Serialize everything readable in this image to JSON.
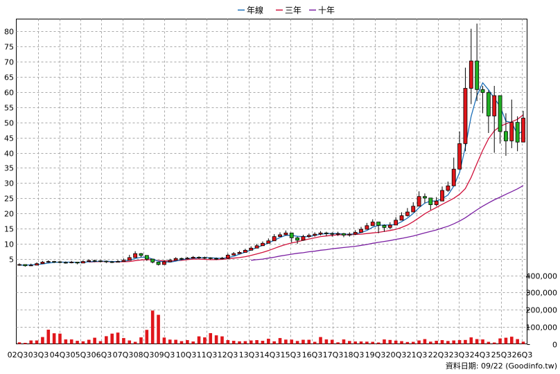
{
  "chart_data": {
    "type": "candlestick",
    "legend": {
      "placement": "top-center",
      "items": [
        {
          "name": "年線",
          "color": "#1c6fb8"
        },
        {
          "name": "三年",
          "color": "#d0103a"
        },
        {
          "name": "十年",
          "color": "#7a1fa2"
        }
      ]
    },
    "price_axis": {
      "ylim": [
        0,
        84
      ],
      "ticks": [
        5,
        10,
        15,
        20,
        25,
        30,
        35,
        40,
        45,
        50,
        55,
        60,
        65,
        70,
        75,
        80
      ]
    },
    "volume_axis": {
      "ylim": [
        0,
        480000
      ],
      "ticks": [
        0,
        100000,
        200000,
        300000,
        400000
      ],
      "tick_labels": [
        "0",
        "100,000",
        "200,000",
        "300,000",
        "400,000"
      ]
    },
    "x_labels": [
      "02Q3",
      "03Q3",
      "04Q3",
      "05Q3",
      "06Q3",
      "07Q3",
      "08Q3",
      "09Q3",
      "10Q3",
      "11Q3",
      "12Q3",
      "13Q3",
      "14Q3",
      "15Q3",
      "16Q3",
      "17Q3",
      "18Q3",
      "19Q3",
      "20Q3",
      "21Q3",
      "22Q3",
      "23Q3",
      "24Q3",
      "25Q3",
      "26Q3"
    ],
    "footer": "資料日期: 09/22 (Goodinfo.tw)",
    "colors": {
      "up": "#e0161b",
      "down": "#21b024",
      "grid": "#a8a8a8",
      "volume": "#e0161b",
      "wick": "#000000"
    },
    "close": [
      3.2,
      2.8,
      3.0,
      3.5,
      4.0,
      4.2,
      4.1,
      3.9,
      3.8,
      4.0,
      3.7,
      4.2,
      4.5,
      4.4,
      4.3,
      4.1,
      4.0,
      4.2,
      4.6,
      5.5,
      6.8,
      6.2,
      5.0,
      4.0,
      3.2,
      4.1,
      4.6,
      5.2,
      5.1,
      5.3,
      5.6,
      5.5,
      5.4,
      5.2,
      5.1,
      5.3,
      6.3,
      6.8,
      7.2,
      7.9,
      8.6,
      9.4,
      10.2,
      11.0,
      12.4,
      13.0,
      13.6,
      12.0,
      11.2,
      12.4,
      12.8,
      13.2,
      13.6,
      13.4,
      13.2,
      13.4,
      12.9,
      13.2,
      13.8,
      14.8,
      16.0,
      17.2,
      16.1,
      15.4,
      16.2,
      17.8,
      19.3,
      20.5,
      22.4,
      25.6,
      25.1,
      22.9,
      24.1,
      27.6,
      29.1,
      34.6,
      43.0,
      61.2,
      70.2,
      60.8,
      59.8,
      52.1,
      58.8,
      47.0,
      43.9,
      50.0,
      43.5,
      51.4
    ],
    "high": [
      3.6,
      3.3,
      3.5,
      3.9,
      4.4,
      4.6,
      4.4,
      4.3,
      4.2,
      4.4,
      4.1,
      4.6,
      4.9,
      4.8,
      4.7,
      4.5,
      4.4,
      4.7,
      5.2,
      6.4,
      7.6,
      7.0,
      5.6,
      4.6,
      3.7,
      4.6,
      5.1,
      5.6,
      5.5,
      5.7,
      6.0,
      5.9,
      5.8,
      5.6,
      5.5,
      5.7,
      6.8,
      7.3,
      7.7,
      8.4,
      9.2,
      10.0,
      10.8,
      11.8,
      13.2,
      13.8,
      14.4,
      13.6,
      12.4,
      13.0,
      13.4,
      13.8,
      14.2,
      14.0,
      13.8,
      14.0,
      13.6,
      13.8,
      14.5,
      15.6,
      16.9,
      18.1,
      17.2,
      16.4,
      17.1,
      18.8,
      20.4,
      21.8,
      23.7,
      27.3,
      26.6,
      24.2,
      25.4,
      28.9,
      30.5,
      38.4,
      47.0,
      68.0,
      80.8,
      82.5,
      62.0,
      60.5,
      62.0,
      56.0,
      53.0,
      57.5,
      52.0,
      53.8
    ],
    "low": [
      2.8,
      2.5,
      2.7,
      3.1,
      3.6,
      3.8,
      3.7,
      3.6,
      3.5,
      3.6,
      3.3,
      3.8,
      4.1,
      4.0,
      3.9,
      3.7,
      3.7,
      3.9,
      4.2,
      5.0,
      6.0,
      5.6,
      4.4,
      3.6,
      2.9,
      3.7,
      4.2,
      4.8,
      4.7,
      4.9,
      5.2,
      5.1,
      5.0,
      4.8,
      4.7,
      4.9,
      5.0,
      6.2,
      6.7,
      7.4,
      8.0,
      8.7,
      9.6,
      10.4,
      11.7,
      12.4,
      12.8,
      10.5,
      10.0,
      11.0,
      12.0,
      12.4,
      12.8,
      12.6,
      12.4,
      12.6,
      12.2,
      12.4,
      12.9,
      13.8,
      15.0,
      15.9,
      13.5,
      14.0,
      14.8,
      16.5,
      17.9,
      19.0,
      20.5,
      23.2,
      23.4,
      21.2,
      22.4,
      25.5,
      27.1,
      32.0,
      38.0,
      40.5,
      56.0,
      57.0,
      53.0,
      46.5,
      40.0,
      43.0,
      39.0,
      41.5,
      40.5,
      44.5
    ],
    "year_ma": [
      3.0,
      3.0,
      3.1,
      3.2,
      3.4,
      3.7,
      3.9,
      4.0,
      4.0,
      4.0,
      3.9,
      3.9,
      4.1,
      4.2,
      4.3,
      4.3,
      4.2,
      4.2,
      4.3,
      4.6,
      5.2,
      5.6,
      5.6,
      5.0,
      4.3,
      4.1,
      4.0,
      4.3,
      4.8,
      5.1,
      5.3,
      5.4,
      5.5,
      5.4,
      5.3,
      5.2,
      5.5,
      5.9,
      6.6,
      7.3,
      8.0,
      8.8,
      9.5,
      10.3,
      11.2,
      12.1,
      12.8,
      12.8,
      12.5,
      12.4,
      12.4,
      12.8,
      13.2,
      13.4,
      13.4,
      13.4,
      13.2,
      13.2,
      13.3,
      13.7,
      14.4,
      15.5,
      16.1,
      16.2,
      16.2,
      16.4,
      17.3,
      18.5,
      20.0,
      21.9,
      23.4,
      24.1,
      24.1,
      24.9,
      26.1,
      29.0,
      33.5,
      41.8,
      52.0,
      58.8,
      63.0,
      60.7,
      57.9,
      55.2,
      50.4,
      49.9,
      46.1,
      47.2
    ],
    "three_year_ma": [
      null,
      null,
      null,
      null,
      null,
      null,
      null,
      null,
      null,
      null,
      null,
      null,
      4.0,
      4.1,
      4.2,
      4.2,
      4.1,
      4.1,
      4.1,
      4.2,
      4.5,
      4.7,
      4.8,
      4.7,
      4.5,
      4.4,
      4.4,
      4.4,
      4.6,
      4.8,
      5.0,
      5.0,
      4.9,
      4.8,
      4.8,
      4.9,
      5.1,
      5.3,
      5.5,
      5.8,
      6.2,
      6.7,
      7.2,
      7.8,
      8.5,
      9.2,
      9.8,
      10.3,
      10.7,
      11.2,
      11.6,
      12.0,
      12.4,
      12.6,
      12.8,
      13.0,
      13.0,
      13.0,
      13.1,
      13.2,
      13.4,
      13.6,
      13.8,
      14.1,
      14.4,
      14.8,
      15.4,
      16.2,
      17.3,
      18.6,
      19.9,
      21.0,
      22.0,
      23.0,
      24.0,
      25.0,
      26.3,
      28.2,
      31.9,
      36.4,
      40.8,
      44.6,
      47.2,
      48.7,
      49.5,
      50.2,
      51.0,
      52.5
    ],
    "ten_year_ma": [
      null,
      null,
      null,
      null,
      null,
      null,
      null,
      null,
      null,
      null,
      null,
      null,
      null,
      null,
      null,
      null,
      null,
      null,
      null,
      null,
      null,
      null,
      null,
      null,
      null,
      null,
      null,
      null,
      null,
      null,
      null,
      null,
      null,
      null,
      null,
      null,
      null,
      null,
      null,
      null,
      4.6,
      4.8,
      5.0,
      5.3,
      5.6,
      6.0,
      6.3,
      6.6,
      6.9,
      7.1,
      7.4,
      7.6,
      7.9,
      8.1,
      8.4,
      8.6,
      8.8,
      9.0,
      9.2,
      9.5,
      9.8,
      10.2,
      10.5,
      10.8,
      11.1,
      11.5,
      11.8,
      12.2,
      12.6,
      13.1,
      13.6,
      14.1,
      14.6,
      15.2,
      15.8,
      16.6,
      17.5,
      18.6,
      19.9,
      21.2,
      22.4,
      23.5,
      24.5,
      25.4,
      26.3,
      27.2,
      28.1,
      29.2
    ],
    "volume": [
      9000,
      6000,
      20000,
      20000,
      40000,
      83000,
      62000,
      60000,
      26000,
      26000,
      18000,
      15000,
      24000,
      36000,
      16000,
      45000,
      60000,
      66000,
      34000,
      20000,
      12000,
      38000,
      82000,
      195000,
      170000,
      37000,
      25000,
      24000,
      16000,
      22000,
      14000,
      44000,
      38000,
      63000,
      50000,
      44000,
      22000,
      18000,
      15000,
      16000,
      20000,
      22000,
      18000,
      30000,
      15000,
      34000,
      25000,
      25000,
      17000,
      24000,
      24000,
      12000,
      40000,
      26000,
      24000,
      9000,
      26000,
      17000,
      14000,
      14000,
      13000,
      12000,
      8000,
      26000,
      23000,
      19000,
      16000,
      11000,
      12000,
      20000,
      28000,
      13000,
      18000,
      22000,
      17000,
      20000,
      22000,
      23000,
      38000,
      28000,
      26000,
      12000,
      8000,
      32000,
      36000,
      42000,
      28000,
      13000
    ]
  }
}
